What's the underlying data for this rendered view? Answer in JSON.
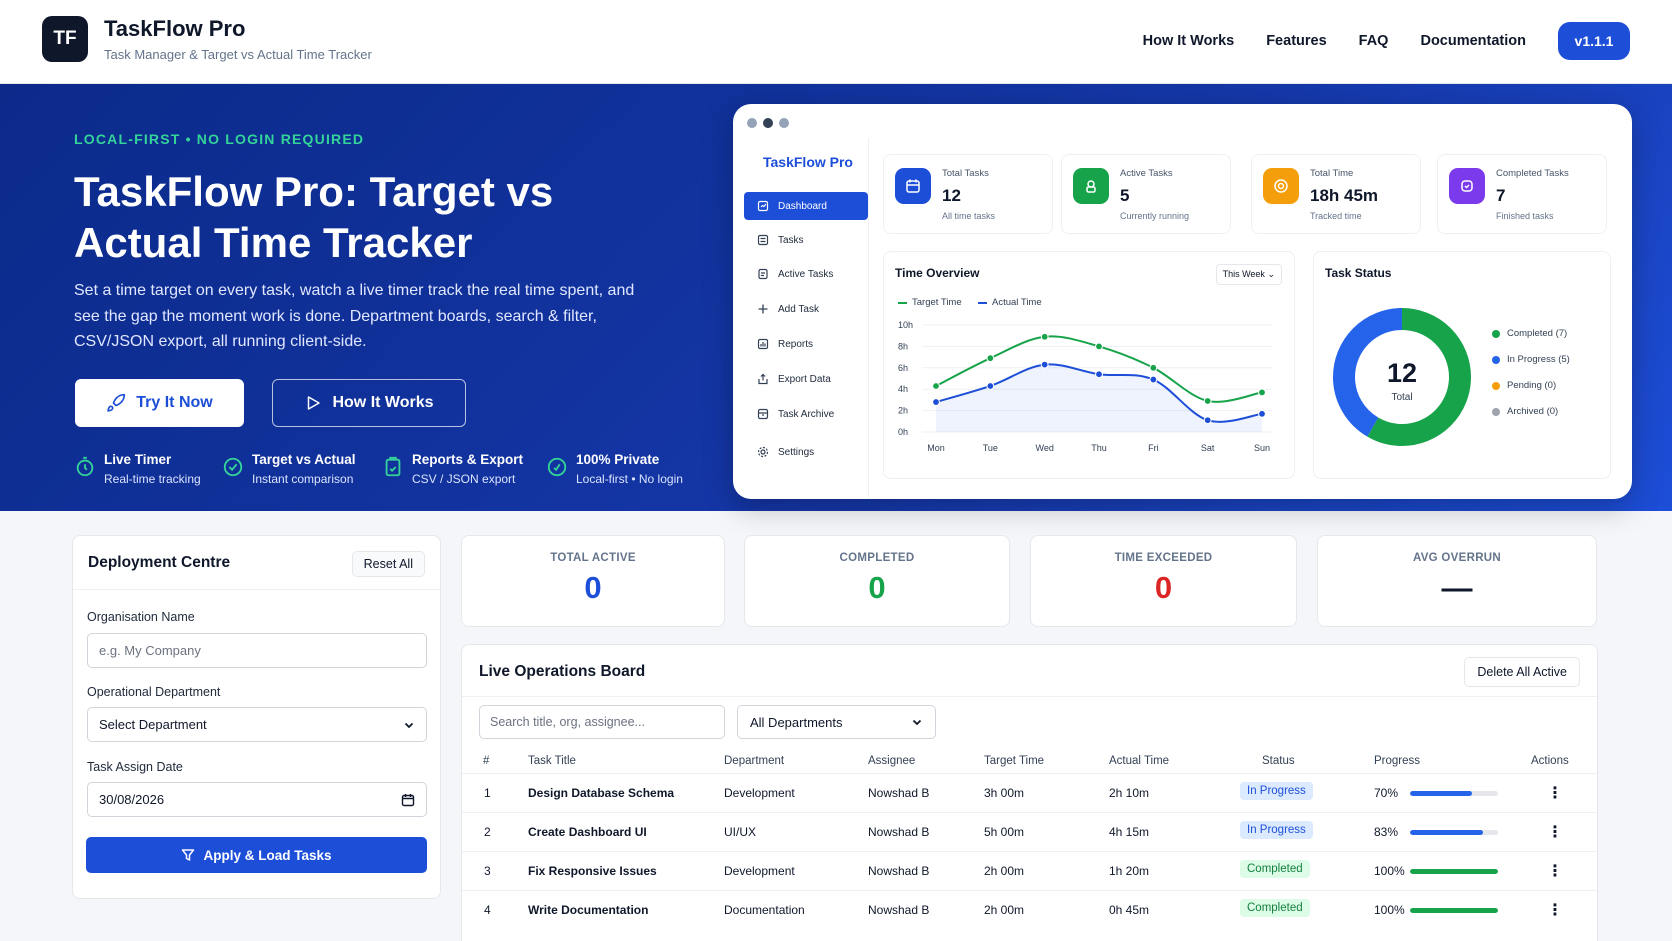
{
  "header": {
    "logo": "TF",
    "title": "TaskFlow Pro",
    "subtitle": "Task Manager & Target vs Actual Time Tracker",
    "nav": [
      "How It Works",
      "Features",
      "FAQ",
      "Documentation"
    ],
    "version": "v1.1.1"
  },
  "hero": {
    "eyebrow": "LOCAL-FIRST • NO LOGIN REQUIRED",
    "title": "TaskFlow Pro: Target vs Actual Time Tracker",
    "description": "Set a time target on every task, watch a live timer track the real time spent, and see the gap the moment work is done. Department boards, search & filter, CSV/JSON export, all running client-side.",
    "try_label": "Try It Now",
    "how_label": "How It Works",
    "features": [
      {
        "title": "Live Timer",
        "sub": "Real-time tracking",
        "icon": "timer-icon"
      },
      {
        "title": "Target vs Actual",
        "sub": "Instant comparison",
        "icon": "target-icon"
      },
      {
        "title": "Reports & Export",
        "sub": "CSV / JSON export",
        "icon": "clipboard-icon"
      },
      {
        "title": "100% Private",
        "sub": "Local-first • No login",
        "icon": "shield-icon"
      }
    ]
  },
  "mockup": {
    "brand": "TaskFlow Pro",
    "menu": [
      "Dashboard",
      "Tasks",
      "Active Tasks",
      "Add Task",
      "Reports",
      "Export Data",
      "Task Archive",
      "Settings"
    ],
    "stats": [
      {
        "label": "Total Tasks",
        "value": "12",
        "sub": "All time tasks",
        "color": "#1d4ed8"
      },
      {
        "label": "Active Tasks",
        "value": "5",
        "sub": "Currently running",
        "color": "#16a34a"
      },
      {
        "label": "Total Time",
        "value": "18h 45m",
        "sub": "Tracked time",
        "color": "#f59e0b"
      },
      {
        "label": "Completed Tasks",
        "value": "7",
        "sub": "Finished tasks",
        "color": "#7c3aed"
      }
    ],
    "time_overview": {
      "title": "Time Overview",
      "range": "This Week",
      "legend": [
        "Target Time",
        "Actual Time"
      ]
    },
    "task_status": {
      "title": "Task Status",
      "total": "12",
      "total_label": "Total",
      "legend": [
        "Completed (7)",
        "In Progress (5)",
        "Pending (0)",
        "Archived (0)"
      ]
    }
  },
  "chart_data": {
    "type": "line",
    "x": [
      "Mon",
      "Tue",
      "Wed",
      "Thu",
      "Fri",
      "Sat",
      "Sun"
    ],
    "yticks": [
      "0h",
      "2h",
      "4h",
      "6h",
      "8h",
      "10h"
    ],
    "ylim": [
      0,
      10
    ],
    "grid": true,
    "legend": "top-left",
    "series": [
      {
        "name": "Target Time",
        "color": "#16a34a",
        "values": [
          4.3,
          6.9,
          8.9,
          8.0,
          6.0,
          2.9,
          3.7
        ]
      },
      {
        "name": "Actual Time",
        "color": "#1d4ed8",
        "values": [
          2.8,
          4.3,
          6.3,
          5.4,
          4.9,
          1.1,
          1.7
        ]
      }
    ]
  },
  "donut_data": {
    "slices": [
      {
        "name": "Completed",
        "value": 7,
        "color": "#16a34a"
      },
      {
        "name": "In Progress",
        "value": 5,
        "color": "#2563eb"
      },
      {
        "name": "Pending",
        "value": 0,
        "color": "#f59e0b"
      },
      {
        "name": "Archived",
        "value": 0,
        "color": "#9ca3af"
      }
    ]
  },
  "deployment": {
    "title": "Deployment Centre",
    "reset": "Reset All",
    "org_label": "Organisation Name",
    "org_placeholder": "e.g. My Company",
    "dept_label": "Operational Department",
    "dept_value": "Select Department",
    "date_label": "Task Assign Date",
    "date_value": "30/08/2026",
    "apply": "Apply & Load Tasks"
  },
  "kpis": [
    {
      "label": "TOTAL ACTIVE",
      "value": "0",
      "color": "#1d4ed8"
    },
    {
      "label": "COMPLETED",
      "value": "0",
      "color": "#16a34a"
    },
    {
      "label": "TIME EXCEEDED",
      "value": "0",
      "color": "#dc2626"
    },
    {
      "label": "AVG OVERRUN",
      "value": "—",
      "color": "#0f172a"
    }
  ],
  "board": {
    "title": "Live Operations Board",
    "delete": "Delete All Active",
    "search_placeholder": "Search title, org, assignee...",
    "filter": "All Departments",
    "columns": [
      "#",
      "Task Title",
      "Department",
      "Assignee",
      "Target Time",
      "Actual Time",
      "Status",
      "Progress",
      "Actions"
    ],
    "rows": [
      {
        "n": "1",
        "title": "Design Database Schema",
        "dept": "Development",
        "assignee": "Nowshad B",
        "target": "3h 00m",
        "actual": "2h 10m",
        "status": "In Progress",
        "progress": 70,
        "progress_label": "70%"
      },
      {
        "n": "2",
        "title": "Create Dashboard UI",
        "dept": "UI/UX",
        "assignee": "Nowshad B",
        "target": "5h 00m",
        "actual": "4h 15m",
        "status": "In Progress",
        "progress": 83,
        "progress_label": "83%"
      },
      {
        "n": "3",
        "title": "Fix Responsive Issues",
        "dept": "Development",
        "assignee": "Nowshad B",
        "target": "2h 00m",
        "actual": "1h 20m",
        "status": "Completed",
        "progress": 100,
        "progress_label": "100%"
      },
      {
        "n": "4",
        "title": "Write Documentation",
        "dept": "Documentation",
        "assignee": "Nowshad B",
        "target": "2h 00m",
        "actual": "0h 45m",
        "status": "Completed",
        "progress": 100,
        "progress_label": "100%"
      }
    ]
  }
}
